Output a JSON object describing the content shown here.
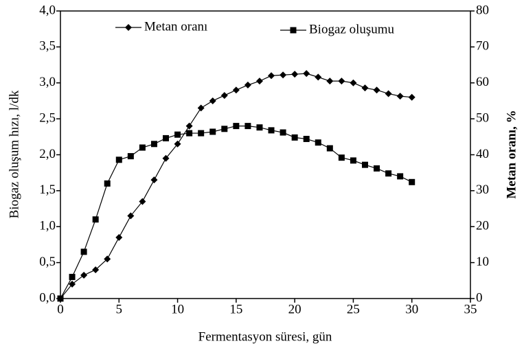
{
  "chart_data": {
    "type": "line",
    "xlabel": "Fermentasyon süresi, gün",
    "ylabel": "Biogaz oluşum hızı, l/dk",
    "y2label": "Metan oranı, %",
    "x": [
      0,
      1,
      2,
      3,
      4,
      5,
      6,
      7,
      8,
      9,
      10,
      11,
      12,
      13,
      14,
      15,
      16,
      17,
      18,
      19,
      20,
      21,
      22,
      23,
      24,
      25,
      26,
      27,
      28,
      29,
      30
    ],
    "series": [
      {
        "name": "Metan oranı",
        "color": "#000000",
        "marker": "diamond",
        "axis": "y2",
        "values": [
          0,
          4,
          6.5,
          8,
          11,
          17,
          23,
          27,
          33,
          39,
          43,
          48,
          53,
          55,
          56.5,
          58,
          59.4,
          60.5,
          62,
          62.2,
          62.4,
          62.6,
          61.6,
          60.5,
          60.5,
          60,
          58.6,
          58,
          57,
          56.3,
          56
        ]
      },
      {
        "name": "Biogaz oluşumu",
        "color": "#000000",
        "marker": "square",
        "values": [
          0,
          0.3,
          0.65,
          1.1,
          1.6,
          1.93,
          1.98,
          2.1,
          2.15,
          2.23,
          2.28,
          2.3,
          2.3,
          2.32,
          2.36,
          2.4,
          2.4,
          2.38,
          2.34,
          2.31,
          2.24,
          2.22,
          2.17,
          2.09,
          1.96,
          1.92,
          1.86,
          1.81,
          1.74,
          1.7,
          1.62
        ]
      }
    ],
    "xlim": [
      0,
      35
    ],
    "xticks": [
      0,
      5,
      10,
      15,
      20,
      25,
      30,
      35
    ],
    "ylim": [
      0,
      4
    ],
    "yticks": [
      {
        "value": 0,
        "label": "0,0"
      },
      {
        "value": 0.5,
        "label": "0,5"
      },
      {
        "value": 1,
        "label": "1,0"
      },
      {
        "value": 1.5,
        "label": "1,5"
      },
      {
        "value": 2,
        "label": "2,0"
      },
      {
        "value": 2.5,
        "label": "2,5"
      },
      {
        "value": 3,
        "label": "3,0"
      },
      {
        "value": 3.5,
        "label": "3,5"
      },
      {
        "value": 4,
        "label": "4,0"
      }
    ],
    "y2lim": [
      0,
      80
    ],
    "y2ticks": [
      0,
      10,
      20,
      30,
      40,
      50,
      60,
      70,
      80
    ],
    "grid": false
  }
}
